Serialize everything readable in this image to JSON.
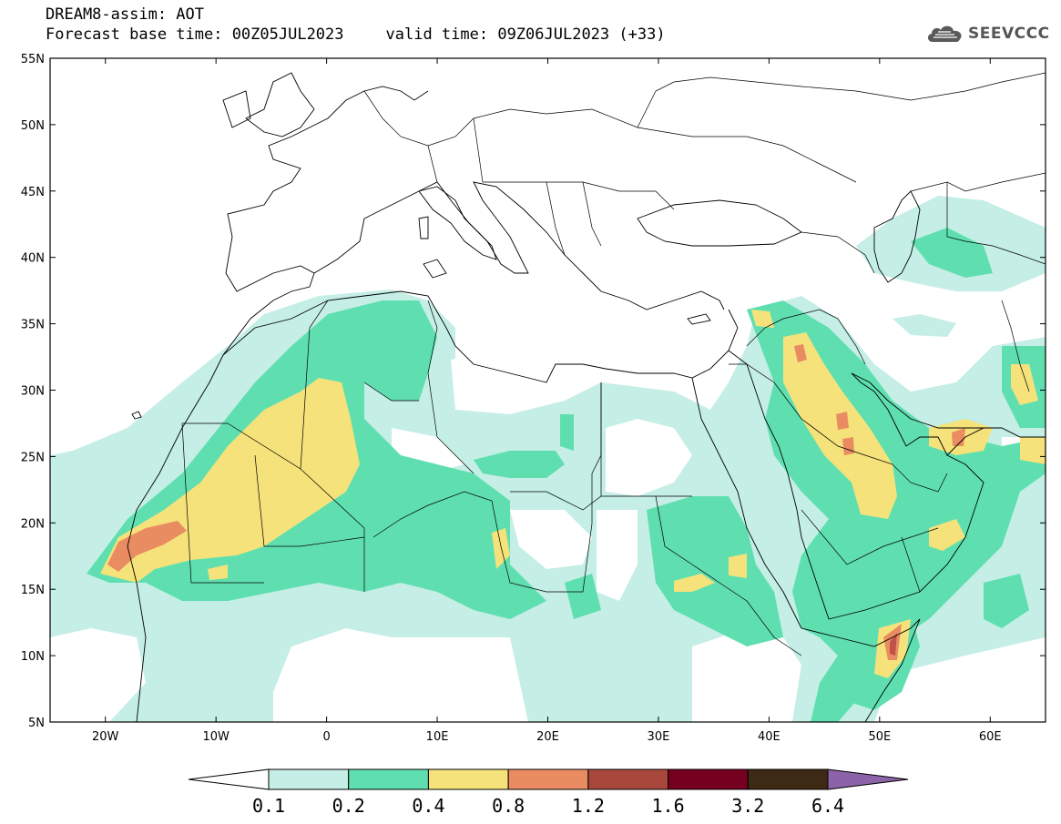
{
  "header": {
    "model": "DREAM8-assim: AOT",
    "base_time": "Forecast base time: 00Z05JUL2023",
    "valid_time": "valid time: 09Z06JUL2023 (+33)"
  },
  "logo": {
    "icon": "cloud-icon",
    "text": "SEEVCCC"
  },
  "axes": {
    "lat_labels": [
      "55N",
      "50N",
      "45N",
      "40N",
      "35N",
      "30N",
      "25N",
      "20N",
      "15N",
      "10N",
      "5N"
    ],
    "lat_values": [
      55,
      50,
      45,
      40,
      35,
      30,
      25,
      20,
      15,
      10,
      5
    ],
    "lon_labels": [
      "20W",
      "10W",
      "0",
      "10E",
      "20E",
      "30E",
      "40E",
      "50E",
      "60E"
    ],
    "lon_values": [
      -20,
      -10,
      0,
      10,
      20,
      30,
      40,
      50,
      60
    ],
    "lon_range": [
      -25,
      65
    ],
    "lat_range": [
      5,
      55
    ]
  },
  "colorbar": {
    "labels": [
      "0.1",
      "0.2",
      "0.4",
      "0.8",
      "1.2",
      "1.6",
      "3.2",
      "6.4"
    ],
    "colors": [
      "#ffffff",
      "#c4eee6",
      "#5fdfb0",
      "#f5e27a",
      "#ea8c62",
      "#a8473b",
      "#75001f",
      "#3c2a14",
      "#8c62a8"
    ]
  },
  "colors": {
    "level1": "#c4eee6",
    "level2": "#5fdfb0",
    "level3": "#f5e27a",
    "level4": "#ea8c62",
    "level5": "#d2665a"
  }
}
